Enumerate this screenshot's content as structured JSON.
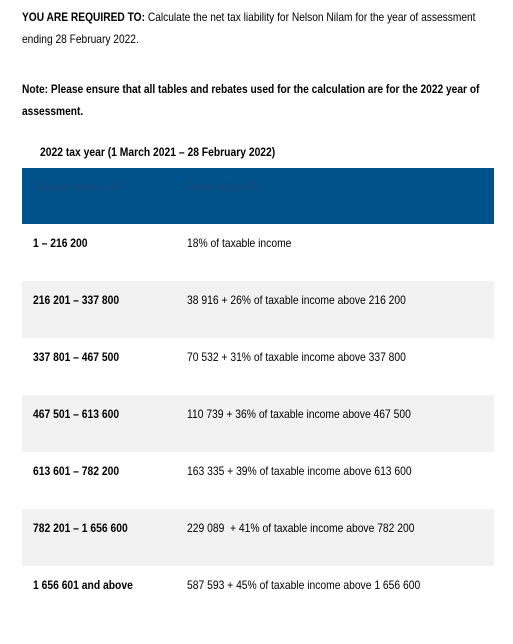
{
  "instruction": {
    "lead": "YOU ARE REQUIRED TO:",
    "text": "Calculate the net tax liability for Nelson Nilam for the year of assessment ending 28 February 2022."
  },
  "note": "Note: Please ensure that all tables and rebates used for the calculation are for the 2022 year of assessment.",
  "table": {
    "caption": "2022 tax year (1 March 2021 – 28 February 2022)",
    "columns": [
      "Taxable income (R)",
      "Rates of tax (R)"
    ],
    "rows": [
      [
        "1 – 216 200",
        "18% of taxable income"
      ],
      [
        "216 201 – 337 800",
        "38 916 + 26% of taxable income above 216 200"
      ],
      [
        "337 801 – 467 500",
        "70 532 + 31% of taxable income above 337 800"
      ],
      [
        "467 501 – 613 600",
        "110 739 + 36% of taxable income above 467 500"
      ],
      [
        "613 601 – 782 200",
        "163 335 + 39% of taxable income above 613 600"
      ],
      [
        "782 201 – 1 656 600",
        "229 089  + 41% of taxable income above 782 200"
      ],
      [
        "1 656 601 and above",
        "587 593 + 45% of taxable income above 1 656 600"
      ]
    ]
  }
}
